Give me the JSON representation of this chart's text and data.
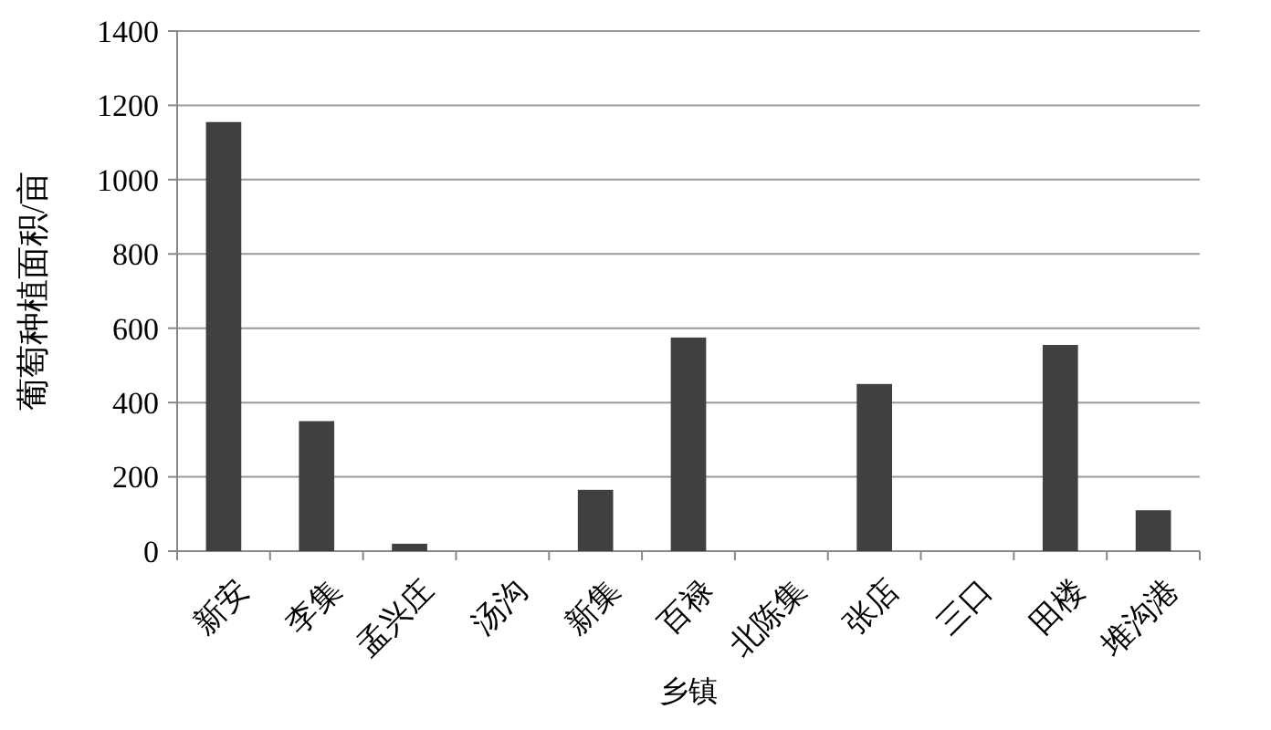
{
  "chart_data": {
    "type": "bar",
    "xlabel": "乡镇",
    "ylabel": "葡萄种植面积/亩",
    "categories": [
      "新安",
      "李集",
      "孟兴庄",
      "汤沟",
      "新集",
      "百禄",
      "北陈集",
      "张店",
      "三口",
      "田楼",
      "堆沟港"
    ],
    "values": [
      1155,
      350,
      20,
      0,
      165,
      575,
      0,
      450,
      0,
      555,
      110
    ],
    "color": "#404040",
    "ylim": [
      0,
      1400
    ],
    "yticks": [
      0,
      200,
      400,
      600,
      800,
      1000,
      1200,
      1400
    ],
    "grid": "y"
  }
}
